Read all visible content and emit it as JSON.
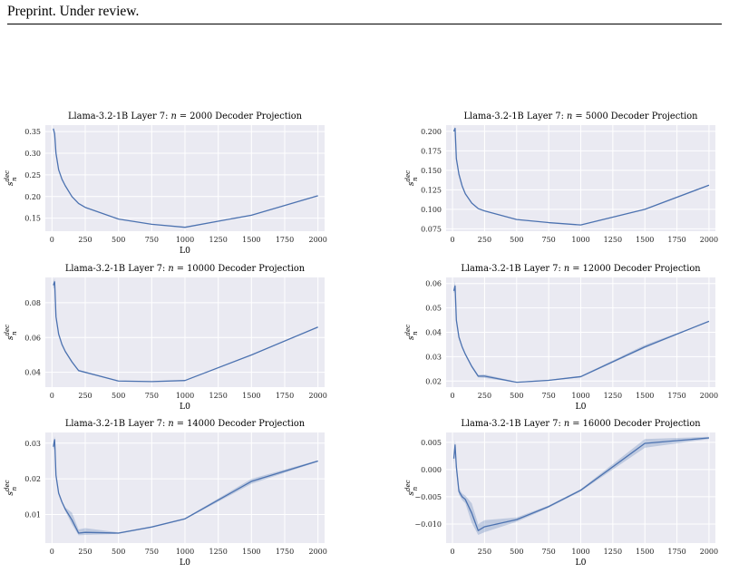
{
  "header": {
    "text": "Preprint. Under review."
  },
  "chart_data": [
    {
      "type": "line",
      "title": "Llama-3.2-1B Layer 7: n = 2000 Decoder Projection",
      "title_parts": [
        "Llama-3.2-1B Layer 7: ",
        "n",
        " = 2000 Decoder Projection"
      ],
      "xlabel": "L0",
      "ylabel_main": "s",
      "ylabel_sub": "n",
      "ylabel_sup": "dec",
      "xlim": [
        -50,
        2050
      ],
      "ylim": [
        0.12,
        0.365
      ],
      "xticks": [
        0,
        250,
        500,
        750,
        1000,
        1250,
        1500,
        1750,
        2000
      ],
      "xtick_labels": [
        "0",
        "250",
        "500",
        "750",
        "1000",
        "1250",
        "1500",
        "1750",
        "2000"
      ],
      "yticks": [
        0.15,
        0.2,
        0.25,
        0.3,
        0.35
      ],
      "ytick_labels": [
        "0.15",
        "0.20",
        "0.25",
        "0.30",
        "0.35"
      ],
      "grid": true,
      "line_color": "#4c72b0",
      "band_color": "#4c72b0",
      "x": [
        10,
        20,
        30,
        50,
        75,
        100,
        150,
        200,
        250,
        500,
        750,
        1000,
        1500,
        2000
      ],
      "y": [
        0.357,
        0.345,
        0.3,
        0.262,
        0.24,
        0.225,
        0.2,
        0.184,
        0.175,
        0.148,
        0.136,
        0.129,
        0.157,
        0.202
      ],
      "lower": [
        0.357,
        0.345,
        0.3,
        0.262,
        0.24,
        0.225,
        0.2,
        0.184,
        0.175,
        0.148,
        0.136,
        0.129,
        0.157,
        0.202
      ],
      "upper": [
        0.357,
        0.345,
        0.3,
        0.262,
        0.24,
        0.225,
        0.2,
        0.184,
        0.175,
        0.148,
        0.136,
        0.129,
        0.157,
        0.202
      ]
    },
    {
      "type": "line",
      "title": "Llama-3.2-1B Layer 7: n = 5000 Decoder Projection",
      "title_parts": [
        "Llama-3.2-1B Layer 7: ",
        "n",
        " = 5000 Decoder Projection"
      ],
      "xlabel": "",
      "ylabel_main": "s",
      "ylabel_sub": "n",
      "ylabel_sup": "dec",
      "xlim": [
        -50,
        2050
      ],
      "ylim": [
        0.072,
        0.208
      ],
      "xticks": [
        0,
        250,
        500,
        750,
        1000,
        1250,
        1500,
        1750,
        2000
      ],
      "xtick_labels": [
        "0",
        "250",
        "500",
        "750",
        "1000",
        "1250",
        "1500",
        "1750",
        "2000"
      ],
      "yticks": [
        0.075,
        0.1,
        0.125,
        0.15,
        0.175,
        0.2
      ],
      "ytick_labels": [
        "0.075",
        "0.100",
        "0.125",
        "0.150",
        "0.175",
        "0.200"
      ],
      "grid": true,
      "line_color": "#4c72b0",
      "band_color": "#4c72b0",
      "x": [
        10,
        20,
        30,
        50,
        75,
        100,
        150,
        200,
        250,
        500,
        750,
        1000,
        1500,
        2000
      ],
      "y": [
        0.2,
        0.204,
        0.165,
        0.145,
        0.13,
        0.12,
        0.108,
        0.101,
        0.098,
        0.087,
        0.083,
        0.08,
        0.1,
        0.131
      ],
      "lower": [
        0.2,
        0.204,
        0.165,
        0.145,
        0.13,
        0.12,
        0.108,
        0.101,
        0.098,
        0.087,
        0.083,
        0.08,
        0.1,
        0.131
      ],
      "upper": [
        0.2,
        0.204,
        0.165,
        0.145,
        0.13,
        0.12,
        0.108,
        0.101,
        0.098,
        0.087,
        0.083,
        0.08,
        0.1,
        0.131
      ]
    },
    {
      "type": "line",
      "title": "Llama-3.2-1B Layer 7: n = 10000 Decoder Projection",
      "title_parts": [
        "Llama-3.2-1B Layer 7: ",
        "n",
        " = 10000 Decoder Projection"
      ],
      "xlabel": "L0",
      "ylabel_main": "s",
      "ylabel_sub": "n",
      "ylabel_sup": "dec",
      "xlim": [
        -50,
        2050
      ],
      "ylim": [
        0.0315,
        0.0945
      ],
      "xticks": [
        0,
        250,
        500,
        750,
        1000,
        1250,
        1500,
        1750,
        2000
      ],
      "xtick_labels": [
        "0",
        "250",
        "500",
        "750",
        "1000",
        "1250",
        "1500",
        "1750",
        "2000"
      ],
      "yticks": [
        0.04,
        0.06,
        0.08
      ],
      "ytick_labels": [
        "0.04",
        "0.06",
        "0.08"
      ],
      "grid": true,
      "line_color": "#4c72b0",
      "band_color": "#4c72b0",
      "x": [
        10,
        20,
        30,
        50,
        75,
        100,
        150,
        200,
        250,
        500,
        750,
        1000,
        1500,
        2000
      ],
      "y": [
        0.09,
        0.092,
        0.072,
        0.062,
        0.056,
        0.052,
        0.046,
        0.041,
        0.04,
        0.035,
        0.0347,
        0.0353,
        0.05,
        0.066
      ],
      "lower": [
        0.088,
        0.089,
        0.071,
        0.0615,
        0.0555,
        0.0515,
        0.0455,
        0.0405,
        0.0395,
        0.035,
        0.0347,
        0.0353,
        0.05,
        0.066
      ],
      "upper": [
        0.092,
        0.094,
        0.073,
        0.0625,
        0.0565,
        0.0525,
        0.0465,
        0.0415,
        0.0405,
        0.035,
        0.0347,
        0.0353,
        0.05,
        0.066
      ]
    },
    {
      "type": "line",
      "title": "Llama-3.2-1B Layer 7: n = 12000 Decoder Projection",
      "title_parts": [
        "Llama-3.2-1B Layer 7: ",
        "n",
        " = 12000 Decoder Projection"
      ],
      "xlabel": "L0",
      "ylabel_main": "s",
      "ylabel_sub": "n",
      "ylabel_sup": "dec",
      "xlim": [
        -50,
        2050
      ],
      "ylim": [
        0.0175,
        0.0625
      ],
      "xticks": [
        0,
        250,
        500,
        750,
        1000,
        1250,
        1500,
        1750,
        2000
      ],
      "xtick_labels": [
        "0",
        "250",
        "500",
        "750",
        "1000",
        "1250",
        "1500",
        "1750",
        "2000"
      ],
      "yticks": [
        0.02,
        0.03,
        0.04,
        0.05,
        0.06
      ],
      "ytick_labels": [
        "0.02",
        "0.03",
        "0.04",
        "0.05",
        "0.06"
      ],
      "grid": true,
      "line_color": "#4c72b0",
      "band_color": "#4c72b0",
      "x": [
        10,
        20,
        30,
        50,
        75,
        100,
        150,
        200,
        250,
        500,
        750,
        1000,
        1500,
        2000
      ],
      "y": [
        0.057,
        0.059,
        0.045,
        0.038,
        0.034,
        0.031,
        0.026,
        0.022,
        0.022,
        0.0195,
        0.0203,
        0.0218,
        0.034,
        0.0445
      ],
      "lower": [
        0.056,
        0.057,
        0.044,
        0.0375,
        0.0335,
        0.0305,
        0.0255,
        0.0215,
        0.0213,
        0.0193,
        0.0201,
        0.0215,
        0.0335,
        0.0445
      ],
      "upper": [
        0.058,
        0.061,
        0.046,
        0.0385,
        0.0345,
        0.0315,
        0.0265,
        0.0225,
        0.0227,
        0.0197,
        0.0205,
        0.0221,
        0.0348,
        0.0445
      ]
    },
    {
      "type": "line",
      "title": "Llama-3.2-1B Layer 7: n = 14000 Decoder Projection",
      "title_parts": [
        "Llama-3.2-1B Layer 7: ",
        "n",
        " = 14000 Decoder Projection"
      ],
      "xlabel": "L0",
      "ylabel_main": "s",
      "ylabel_sub": "n",
      "ylabel_sup": "dec",
      "xlim": [
        -50,
        2050
      ],
      "ylim": [
        0.002,
        0.033
      ],
      "xticks": [
        0,
        250,
        500,
        750,
        1000,
        1250,
        1500,
        1750,
        2000
      ],
      "xtick_labels": [
        "0",
        "250",
        "500",
        "750",
        "1000",
        "1250",
        "1500",
        "1750",
        "2000"
      ],
      "yticks": [
        0.01,
        0.02,
        0.03
      ],
      "ytick_labels": [
        "0.01",
        "0.02",
        "0.03"
      ],
      "grid": true,
      "line_color": "#4c72b0",
      "band_color": "#4c72b0",
      "x": [
        10,
        20,
        30,
        50,
        75,
        100,
        150,
        200,
        250,
        500,
        750,
        1000,
        1500,
        2000
      ],
      "y": [
        0.029,
        0.031,
        0.021,
        0.016,
        0.0135,
        0.0115,
        0.0085,
        0.0048,
        0.005,
        0.0048,
        0.0065,
        0.0088,
        0.0193,
        0.025
      ],
      "lower": [
        0.028,
        0.029,
        0.0205,
        0.0158,
        0.0132,
        0.011,
        0.0072,
        0.0042,
        0.0043,
        0.0046,
        0.0063,
        0.0086,
        0.0186,
        0.0248
      ],
      "upper": [
        0.03,
        0.032,
        0.0215,
        0.0162,
        0.0138,
        0.012,
        0.0105,
        0.0058,
        0.0062,
        0.005,
        0.0067,
        0.009,
        0.02,
        0.0252
      ]
    },
    {
      "type": "line",
      "title": "Llama-3.2-1B Layer 7: n = 16000 Decoder Projection",
      "title_parts": [
        "Llama-3.2-1B Layer 7: ",
        "n",
        " = 16000 Decoder Projection"
      ],
      "xlabel": "L0",
      "ylabel_main": "s",
      "ylabel_sub": "n",
      "ylabel_sup": "dec",
      "xlim": [
        -50,
        2050
      ],
      "ylim": [
        -0.0135,
        0.0068
      ],
      "xticks": [
        0,
        250,
        500,
        750,
        1000,
        1250,
        1500,
        1750,
        2000
      ],
      "xtick_labels": [
        "0",
        "250",
        "500",
        "750",
        "1000",
        "1250",
        "1500",
        "1750",
        "2000"
      ],
      "yticks": [
        -0.01,
        -0.005,
        0.0,
        0.005
      ],
      "ytick_labels": [
        "−0.010",
        "−0.005",
        "0.000",
        "0.005"
      ],
      "grid": true,
      "line_color": "#4c72b0",
      "band_color": "#4c72b0",
      "x": [
        10,
        20,
        30,
        50,
        75,
        100,
        150,
        200,
        250,
        500,
        750,
        1000,
        1500,
        2000
      ],
      "y": [
        0.002,
        0.0045,
        0.0005,
        -0.004,
        -0.005,
        -0.0055,
        -0.008,
        -0.0112,
        -0.0105,
        -0.0092,
        -0.0068,
        -0.0038,
        0.0048,
        0.0058
      ],
      "lower": [
        0.001,
        0.0032,
        -0.0005,
        -0.0046,
        -0.0056,
        -0.0062,
        -0.0098,
        -0.012,
        -0.0115,
        -0.0096,
        -0.007,
        -0.004,
        0.004,
        0.0056
      ],
      "upper": [
        0.003,
        0.0055,
        0.0015,
        -0.0034,
        -0.0044,
        -0.0048,
        -0.0062,
        -0.01,
        -0.0093,
        -0.0088,
        -0.0066,
        -0.0036,
        0.0056,
        0.006
      ]
    }
  ]
}
